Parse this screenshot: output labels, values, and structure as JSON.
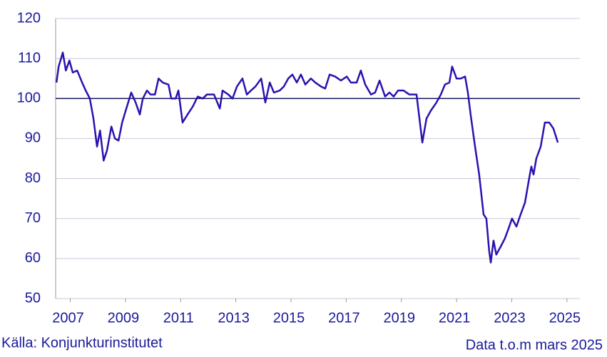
{
  "chart_data": {
    "type": "line",
    "source": "Källa: Konjunkturinstitutet",
    "note": "Data t.o.m mars 2025",
    "x": [
      2007.0,
      2007.08,
      2007.23,
      2007.34,
      2007.47,
      2007.59,
      2007.75,
      2007.93,
      2008.06,
      2008.21,
      2008.34,
      2008.47,
      2008.58,
      2008.71,
      2008.83,
      2008.99,
      2009.12,
      2009.25,
      2009.38,
      2009.51,
      2009.71,
      2009.87,
      2010.02,
      2010.13,
      2010.28,
      2010.41,
      2010.57,
      2010.7,
      2010.85,
      2011.06,
      2011.16,
      2011.32,
      2011.42,
      2011.57,
      2011.75,
      2011.94,
      2012.12,
      2012.3,
      2012.45,
      2012.71,
      2012.92,
      2013.02,
      2013.23,
      2013.38,
      2013.54,
      2013.74,
      2013.9,
      2014.05,
      2014.21,
      2014.42,
      2014.57,
      2014.73,
      2014.88,
      2015.09,
      2015.24,
      2015.4,
      2015.55,
      2015.71,
      2015.86,
      2016.02,
      2016.22,
      2016.38,
      2016.59,
      2016.74,
      2016.9,
      2017.1,
      2017.31,
      2017.52,
      2017.67,
      2017.88,
      2018.03,
      2018.19,
      2018.4,
      2018.55,
      2018.71,
      2018.91,
      2019.07,
      2019.22,
      2019.38,
      2019.58,
      2019.79,
      2020.05,
      2020.26,
      2020.41,
      2020.57,
      2020.77,
      2020.93,
      2021.08,
      2021.24,
      2021.34,
      2021.5,
      2021.65,
      2021.81,
      2021.91,
      2022.01,
      2022.17,
      2022.32,
      2022.48,
      2022.58,
      2022.68,
      2022.74,
      2022.84,
      2022.94,
      2023.1,
      2023.25,
      2023.41,
      2023.51,
      2023.67,
      2023.82,
      2023.98,
      2024.13,
      2024.21,
      2024.29,
      2024.39,
      2024.55,
      2024.7,
      2024.86,
      2025.01,
      2025.17
    ],
    "series": [
      {
        "color": "#2a12b0",
        "values": [
          104,
          108,
          111.5,
          107,
          109.5,
          106.5,
          107,
          104,
          102,
          100,
          95,
          88,
          92,
          84.5,
          87,
          93,
          90,
          89.5,
          94,
          97,
          101.5,
          99,
          96,
          100,
          102,
          101,
          101,
          105,
          104,
          103.5,
          100,
          100,
          102,
          94,
          96,
          98,
          100.5,
          100,
          101,
          101,
          97.5,
          102,
          101,
          100,
          103,
          105,
          101,
          102,
          103,
          105,
          99,
          104,
          101.5,
          102,
          103,
          105,
          106,
          104,
          106,
          103.5,
          105,
          104,
          103,
          102.5,
          106,
          105.5,
          104.5,
          105.5,
          104,
          104,
          107,
          103.5,
          101,
          101.5,
          104.5,
          100.5,
          101.5,
          100.5,
          102,
          102,
          101,
          101,
          89,
          95,
          97,
          99,
          101,
          103.5,
          104,
          108,
          105,
          105,
          105.5,
          101.5,
          96,
          88,
          81,
          71,
          70,
          62,
          59,
          64.5,
          61,
          63,
          65,
          68,
          70,
          68,
          71,
          74,
          80,
          83,
          81,
          85,
          88,
          94,
          94,
          92.5,
          89
        ]
      }
    ],
    "xlim": [
      2006.97,
      2025.97
    ],
    "xticks": [
      {
        "value": 2007.5,
        "label": "2007"
      },
      {
        "value": 2009.5,
        "label": "2009"
      },
      {
        "value": 2011.5,
        "label": "2011"
      },
      {
        "value": 2013.5,
        "label": "2013"
      },
      {
        "value": 2015.5,
        "label": "2015"
      },
      {
        "value": 2017.5,
        "label": "2017"
      },
      {
        "value": 2019.5,
        "label": "2019"
      },
      {
        "value": 2021.5,
        "label": "2021"
      },
      {
        "value": 2023.5,
        "label": "2023"
      },
      {
        "value": 2025.5,
        "label": "2025"
      }
    ],
    "ylim": [
      50,
      120
    ],
    "yticks": [
      50,
      60,
      70,
      80,
      90,
      100,
      110,
      120
    ],
    "reference_line": 100,
    "grid": true
  }
}
